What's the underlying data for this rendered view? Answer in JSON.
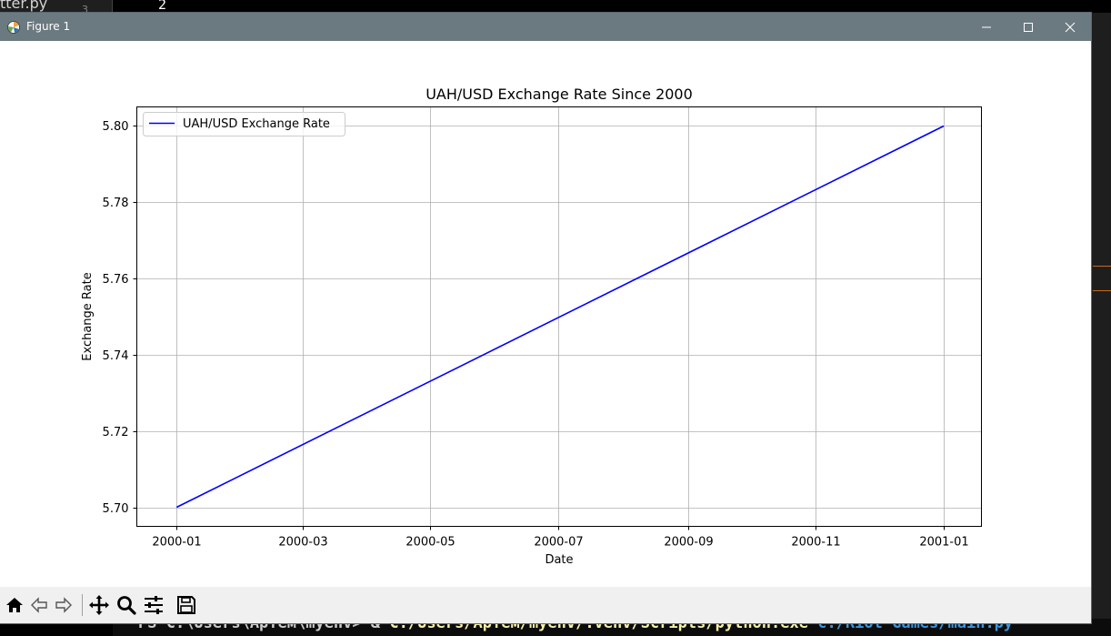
{
  "background": {
    "editor_fragment": "tter.py",
    "line_number": "3",
    "terminal_number": "2",
    "terminal_prompt": "PS C:\\Users\\Артем\\myenv>",
    "terminal_amp": "&",
    "terminal_exe": "C:/Users/Артем/myenv/.venv/Scripts/python.exe",
    "terminal_script": "c:/Riot Games/main.py\""
  },
  "window": {
    "title": "Figure 1",
    "icon": "matplotlib-figure-icon",
    "controls": [
      "minimize-icon",
      "maximize-icon",
      "close-icon"
    ]
  },
  "toolbar": {
    "buttons": [
      "home-icon",
      "back-icon",
      "forward-icon",
      "pan-icon",
      "zoom-icon",
      "configure-subplots-icon",
      "save-icon"
    ]
  },
  "colors": {
    "titlebar": "#6b7a80",
    "line": "#0000ff",
    "grid": "#b0b0b0"
  },
  "chart_data": {
    "type": "line",
    "title": "UAH/USD Exchange Rate Since 2000",
    "xlabel": "Date",
    "ylabel": "Exchange Rate",
    "x_ticks": [
      "2000-01",
      "2000-03",
      "2000-05",
      "2000-07",
      "2000-09",
      "2000-11",
      "2001-01"
    ],
    "y_ticks": [
      "5.70",
      "5.72",
      "5.74",
      "5.76",
      "5.78",
      "5.80"
    ],
    "xlim": [
      "1999-12-13",
      "2001-01-19"
    ],
    "ylim": [
      5.695,
      5.805
    ],
    "grid": true,
    "legend_placement": "upper-left",
    "series": [
      {
        "name": "UAH/USD Exchange Rate",
        "color": "#0000ff",
        "x": [
          "2000-01-01",
          "2001-01-01"
        ],
        "y": [
          5.7,
          5.8
        ]
      }
    ]
  }
}
